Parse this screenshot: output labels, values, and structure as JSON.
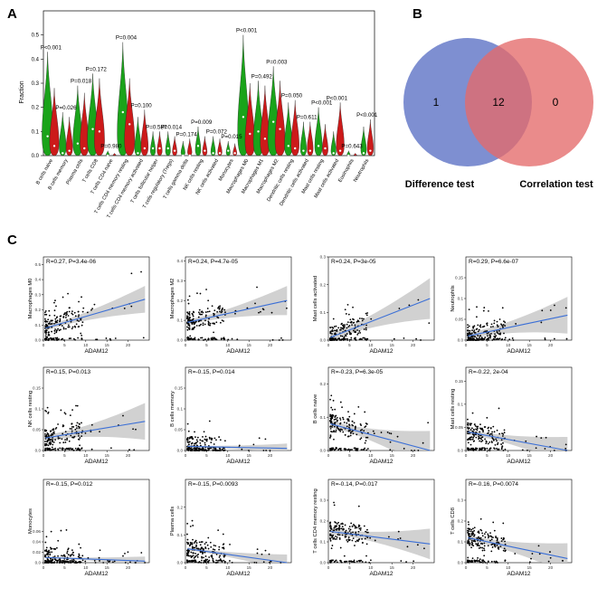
{
  "panels": {
    "a": "A",
    "b": "B",
    "c": "C"
  },
  "colors": {
    "green": "#1aa31a",
    "red": "#cc1a1a",
    "venn_left": "#5a6fc4",
    "venn_right": "#e46a6a",
    "venn_overlap": "#b04a6a",
    "regression": "#3b6fd6",
    "ci_band": "#c9c9c9"
  },
  "chart_data": [
    {
      "type": "violin",
      "panel": "A",
      "title": "",
      "ylabel": "Fraction",
      "ylim": [
        0,
        0.6
      ],
      "yticks": [
        "0.0",
        "0.1",
        "0.2",
        "0.3",
        "0.4",
        "0.5"
      ],
      "yticks_values": [
        0,
        0.1,
        0.2,
        0.3,
        0.4,
        0.5
      ],
      "categories": [
        "B cells naive",
        "B cells memory",
        "Plasma cells",
        "T cells CD8",
        "T cells CD4 naive",
        "T cells CD4 memory resting",
        "T cells CD4 memory activated",
        "T cells follicular helper",
        "T cells regulatory (Tregs)",
        "T cells gamma delta",
        "NK cells resting",
        "NK cells activated",
        "Monocytes",
        "Macrophages M0",
        "Macrophages M1",
        "Macrophages M2",
        "Dendritic cells resting",
        "Dendritic cells activated",
        "Mast cells resting",
        "Mast cells activated",
        "Eosinophils",
        "Neutrophils"
      ],
      "p_values": [
        "P<0.001",
        "P=0.026",
        "P=0.018",
        "P=0.172",
        "P=0.980",
        "P=0.004",
        "P=0.100",
        "P=0.587",
        "P=0.014",
        "P=0.174",
        "P=0.009",
        "P=0.072",
        "P=0.015",
        "P<0.001",
        "P=0.492",
        "P=0.003",
        "P=0.050",
        "P=0.611",
        "P<0.001",
        "P<0.001",
        "P=0.643",
        "P<0.001"
      ],
      "series": [
        {
          "name": "green",
          "max": [
            0.43,
            0.18,
            0.29,
            0.34,
            0.02,
            0.47,
            0.16,
            0.1,
            0.1,
            0.06,
            0.12,
            0.08,
            0.06,
            0.5,
            0.31,
            0.37,
            0.22,
            0.14,
            0.2,
            0.1,
            0.02,
            0.12
          ],
          "median": [
            0.08,
            0.01,
            0.05,
            0.11,
            0.0,
            0.18,
            0.01,
            0.03,
            0.03,
            0.0,
            0.04,
            0.01,
            0.02,
            0.16,
            0.1,
            0.14,
            0.04,
            0.02,
            0.04,
            0.01,
            0.0,
            0.01
          ]
        },
        {
          "name": "red",
          "max": [
            0.28,
            0.16,
            0.26,
            0.32,
            0.01,
            0.32,
            0.19,
            0.1,
            0.08,
            0.07,
            0.08,
            0.07,
            0.05,
            0.3,
            0.29,
            0.31,
            0.23,
            0.14,
            0.13,
            0.22,
            0.01,
            0.15
          ],
          "median": [
            0.04,
            0.02,
            0.03,
            0.1,
            0.0,
            0.13,
            0.03,
            0.03,
            0.02,
            0.0,
            0.02,
            0.01,
            0.01,
            0.09,
            0.07,
            0.11,
            0.03,
            0.02,
            0.03,
            0.02,
            0.0,
            0.02
          ]
        }
      ]
    },
    {
      "type": "venn",
      "panel": "B",
      "sets": [
        "Difference test",
        "Correlation test"
      ],
      "values": {
        "left_only": "1",
        "both": "12",
        "right_only": "0"
      }
    },
    {
      "type": "scatter",
      "panel": "C",
      "xlabel": "ADAM12",
      "plots": [
        {
          "ylabel": "Macrophages M0",
          "stat": "R=0.27, P=3.4e-06",
          "xlim": [
            0,
            25
          ],
          "ylim": [
            0,
            0.55
          ],
          "xticks": [
            0,
            5,
            10,
            15,
            20
          ],
          "yticks": [
            0.0,
            0.1,
            0.2,
            0.3,
            0.4,
            0.5
          ],
          "fit": [
            0.08,
            0.27
          ],
          "ci": 0.06,
          "trend": 1
        },
        {
          "ylabel": "Macrophages M2",
          "stat": "R=0.24, P=4.7e-05",
          "xlim": [
            0,
            25
          ],
          "ylim": [
            0,
            0.42
          ],
          "xticks": [
            0,
            5,
            10,
            15,
            20
          ],
          "yticks": [
            0.0,
            0.1,
            0.2,
            0.3,
            0.4
          ],
          "fit": [
            0.09,
            0.2
          ],
          "ci": 0.05,
          "trend": 1
        },
        {
          "ylabel": "Mast cells activated",
          "stat": "R=0.24, P=3e-05",
          "xlim": [
            0,
            25
          ],
          "ylim": [
            0,
            0.3
          ],
          "xticks": [
            0,
            5,
            10,
            15,
            20
          ],
          "yticks": [
            0.0,
            0.1,
            0.2,
            0.3
          ],
          "fit": [
            0.01,
            0.15
          ],
          "ci": 0.05,
          "trend": 1
        },
        {
          "ylabel": "Neutrophils",
          "stat": "R=0.29, P=6.6e-07",
          "xlim": [
            0,
            25
          ],
          "ylim": [
            0,
            0.2
          ],
          "xticks": [
            0,
            5,
            10,
            15,
            20
          ],
          "yticks": [
            0.0,
            0.05,
            0.1,
            0.15
          ],
          "fit": [
            0.01,
            0.06
          ],
          "ci": 0.03,
          "trend": 1
        },
        {
          "ylabel": "NK cells resting",
          "stat": "R=0.15, P=0.013",
          "xlim": [
            0,
            25
          ],
          "ylim": [
            0,
            0.2
          ],
          "xticks": [
            0,
            5,
            10,
            15,
            20
          ],
          "yticks": [
            0.0,
            0.05,
            0.1,
            0.15
          ],
          "fit": [
            0.03,
            0.07
          ],
          "ci": 0.03,
          "trend": 1
        },
        {
          "ylabel": "B cells memory",
          "stat": "R=-0.15, P=0.014",
          "xlim": [
            0,
            25
          ],
          "ylim": [
            0,
            0.2
          ],
          "xticks": [
            0,
            5,
            10,
            15,
            20
          ],
          "yticks": [
            0.0,
            0.05,
            0.1,
            0.15
          ],
          "fit": [
            0.01,
            0.005
          ],
          "ci": 0.008,
          "trend": -1
        },
        {
          "ylabel": "B cells naive",
          "stat": "R=-0.23, P=6.3e-05",
          "xlim": [
            0,
            25
          ],
          "ylim": [
            0,
            0.25
          ],
          "xticks": [
            0,
            5,
            10,
            15,
            20
          ],
          "yticks": [
            0.0,
            0.1,
            0.2
          ],
          "fit": [
            0.08,
            0.0
          ],
          "ci": 0.04,
          "trend": -1
        },
        {
          "ylabel": "Mast cells resting",
          "stat": "R=-0.22, 2e-04",
          "xlim": [
            0,
            25
          ],
          "ylim": [
            0,
            0.18
          ],
          "xticks": [
            0,
            5,
            10,
            15,
            20
          ],
          "yticks": [
            0.0,
            0.05,
            0.1,
            0.15
          ],
          "fit": [
            0.04,
            0.0
          ],
          "ci": 0.02,
          "trend": -1
        },
        {
          "ylabel": "Monocytes",
          "stat": "R=-0.15, P=0.012",
          "xlim": [
            0,
            25
          ],
          "ylim": [
            0,
            0.16
          ],
          "xticks": [
            0,
            5,
            10,
            15,
            20
          ],
          "yticks": [
            0.0,
            0.02,
            0.04,
            0.06
          ],
          "fit": [
            0.01,
            0.003
          ],
          "ci": 0.006,
          "trend": -1
        },
        {
          "ylabel": "Plasma cells",
          "stat": "R=-0.15, P=0.0093",
          "xlim": [
            0,
            25
          ],
          "ylim": [
            0,
            0.3
          ],
          "xticks": [
            0,
            5,
            10,
            15,
            20
          ],
          "yticks": [
            0.0,
            0.1,
            0.2
          ],
          "fit": [
            0.05,
            0.0
          ],
          "ci": 0.02,
          "trend": -1
        },
        {
          "ylabel": "T cells CD4 memory resting",
          "stat": "R=-0.14, P=0.017",
          "xlim": [
            0,
            25
          ],
          "ylim": [
            0,
            0.4
          ],
          "xticks": [
            0,
            5,
            10,
            15,
            20
          ],
          "yticks": [
            0.0,
            0.1,
            0.2,
            0.3
          ],
          "fit": [
            0.15,
            0.09
          ],
          "ci": 0.05,
          "trend": -1
        },
        {
          "ylabel": "T cells CD8",
          "stat": "R=-0.16, P=0.0074",
          "xlim": [
            0,
            25
          ],
          "ylim": [
            0,
            0.4
          ],
          "xticks": [
            0,
            5,
            10,
            15,
            20
          ],
          "yticks": [
            0.0,
            0.1,
            0.2,
            0.3
          ],
          "fit": [
            0.12,
            0.02
          ],
          "ci": 0.05,
          "trend": -1
        }
      ]
    }
  ]
}
